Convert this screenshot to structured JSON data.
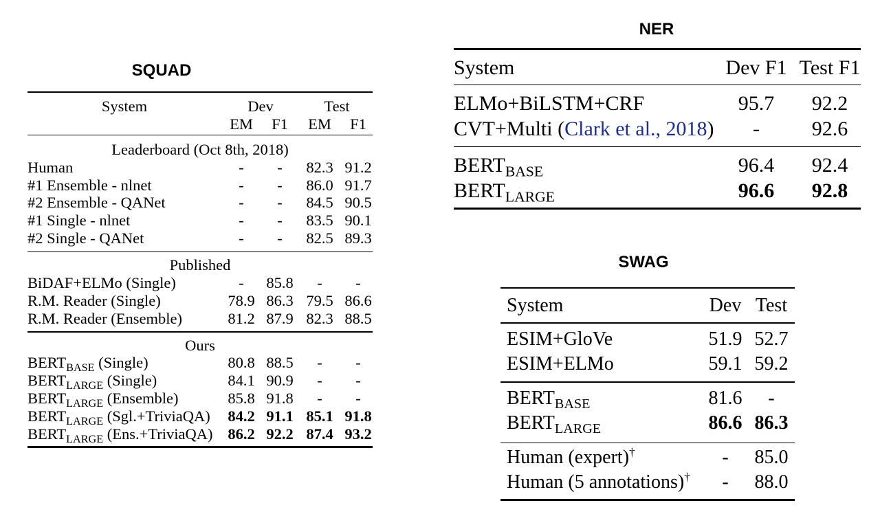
{
  "page": {
    "background": "#ffffff",
    "text_color": "#000000",
    "citation_color": "#1f2f8f"
  },
  "squad": {
    "title": "SQUAD",
    "header": {
      "system": "System",
      "groups": [
        "Dev",
        "Test"
      ],
      "columns": [
        "EM",
        "F1",
        "EM",
        "F1"
      ]
    },
    "sections": [
      {
        "label": "Leaderboard (Oct 8th, 2018)",
        "rows": [
          {
            "system": {
              "text": "Human"
            },
            "values": [
              "-",
              "-",
              "82.3",
              "91.2"
            ]
          },
          {
            "system": {
              "text": "#1 Ensemble - nlnet"
            },
            "values": [
              "-",
              "-",
              "86.0",
              "91.7"
            ]
          },
          {
            "system": {
              "text": "#2 Ensemble - QANet"
            },
            "values": [
              "-",
              "-",
              "84.5",
              "90.5"
            ]
          },
          {
            "system": {
              "text": "#1 Single - nlnet"
            },
            "values": [
              "-",
              "-",
              "83.5",
              "90.1"
            ]
          },
          {
            "system": {
              "text": "#2 Single - QANet"
            },
            "values": [
              "-",
              "-",
              "82.5",
              "89.3"
            ]
          }
        ]
      },
      {
        "label": "Published",
        "rows": [
          {
            "system": {
              "text": "BiDAF+ELMo (Single)"
            },
            "values": [
              "-",
              "85.8",
              "-",
              "-"
            ]
          },
          {
            "system": {
              "text": "R.M. Reader (Single)"
            },
            "values": [
              "78.9",
              "86.3",
              "79.5",
              "86.6"
            ]
          },
          {
            "system": {
              "text": "R.M. Reader (Ensemble)"
            },
            "values": [
              "81.2",
              "87.9",
              "82.3",
              "88.5"
            ]
          }
        ]
      },
      {
        "label": "Ours",
        "rows": [
          {
            "system": {
              "text": "BERT",
              "sub": "BASE",
              "after": " (Single)"
            },
            "values": [
              "80.8",
              "88.5",
              "-",
              "-"
            ]
          },
          {
            "system": {
              "text": "BERT",
              "sub": "LARGE",
              "after": " (Single)"
            },
            "values": [
              "84.1",
              "90.9",
              "-",
              "-"
            ]
          },
          {
            "system": {
              "text": "BERT",
              "sub": "LARGE",
              "after": " (Ensemble)"
            },
            "values": [
              "85.8",
              "91.8",
              "-",
              "-"
            ]
          },
          {
            "system": {
              "text": "BERT",
              "sub": "LARGE",
              "after": " (Sgl.+TriviaQA)"
            },
            "values": [
              "84.2",
              "91.1",
              "85.1",
              "91.8"
            ],
            "bold": true
          },
          {
            "system": {
              "text": "BERT",
              "sub": "LARGE",
              "after": " (Ens.+TriviaQA)"
            },
            "values": [
              "86.2",
              "92.2",
              "87.4",
              "93.2"
            ],
            "bold": true
          }
        ]
      }
    ]
  },
  "ner": {
    "title": "NER",
    "header": {
      "system": "System",
      "columns": [
        "Dev F1",
        "Test F1"
      ]
    },
    "sections": [
      {
        "rows": [
          {
            "system": {
              "text": "ELMo+BiLSTM+CRF"
            },
            "values": [
              "95.7",
              "92.2"
            ]
          },
          {
            "system": {
              "text": "CVT+Multi (",
              "link": "Clark et al., 2018",
              "after": ")"
            },
            "values": [
              "-",
              "92.6"
            ]
          }
        ]
      },
      {
        "rows": [
          {
            "system": {
              "text": "BERT",
              "sub": "BASE"
            },
            "values": [
              "96.4",
              "92.4"
            ]
          },
          {
            "system": {
              "text": "BERT",
              "sub": "LARGE"
            },
            "values": [
              "96.6",
              "92.8"
            ],
            "bold": true
          }
        ]
      }
    ]
  },
  "swag": {
    "title": "SWAG",
    "header": {
      "system": "System",
      "columns": [
        "Dev",
        "Test"
      ]
    },
    "sections": [
      {
        "rows": [
          {
            "system": {
              "text": "ESIM+GloVe"
            },
            "values": [
              "51.9",
              "52.7"
            ]
          },
          {
            "system": {
              "text": "ESIM+ELMo"
            },
            "values": [
              "59.1",
              "59.2"
            ]
          }
        ]
      },
      {
        "rows": [
          {
            "system": {
              "text": "BERT",
              "sub": "BASE"
            },
            "values": [
              "81.6",
              "-"
            ]
          },
          {
            "system": {
              "text": "BERT",
              "sub": "LARGE"
            },
            "values": [
              "86.6",
              "86.3"
            ],
            "bold": true
          }
        ]
      },
      {
        "rows": [
          {
            "system": {
              "text": "Human (expert)",
              "sup": "†"
            },
            "values": [
              "-",
              "85.0"
            ]
          },
          {
            "system": {
              "text": "Human (5 annotations)",
              "sup": "†"
            },
            "values": [
              "-",
              "88.0"
            ]
          }
        ]
      }
    ]
  }
}
